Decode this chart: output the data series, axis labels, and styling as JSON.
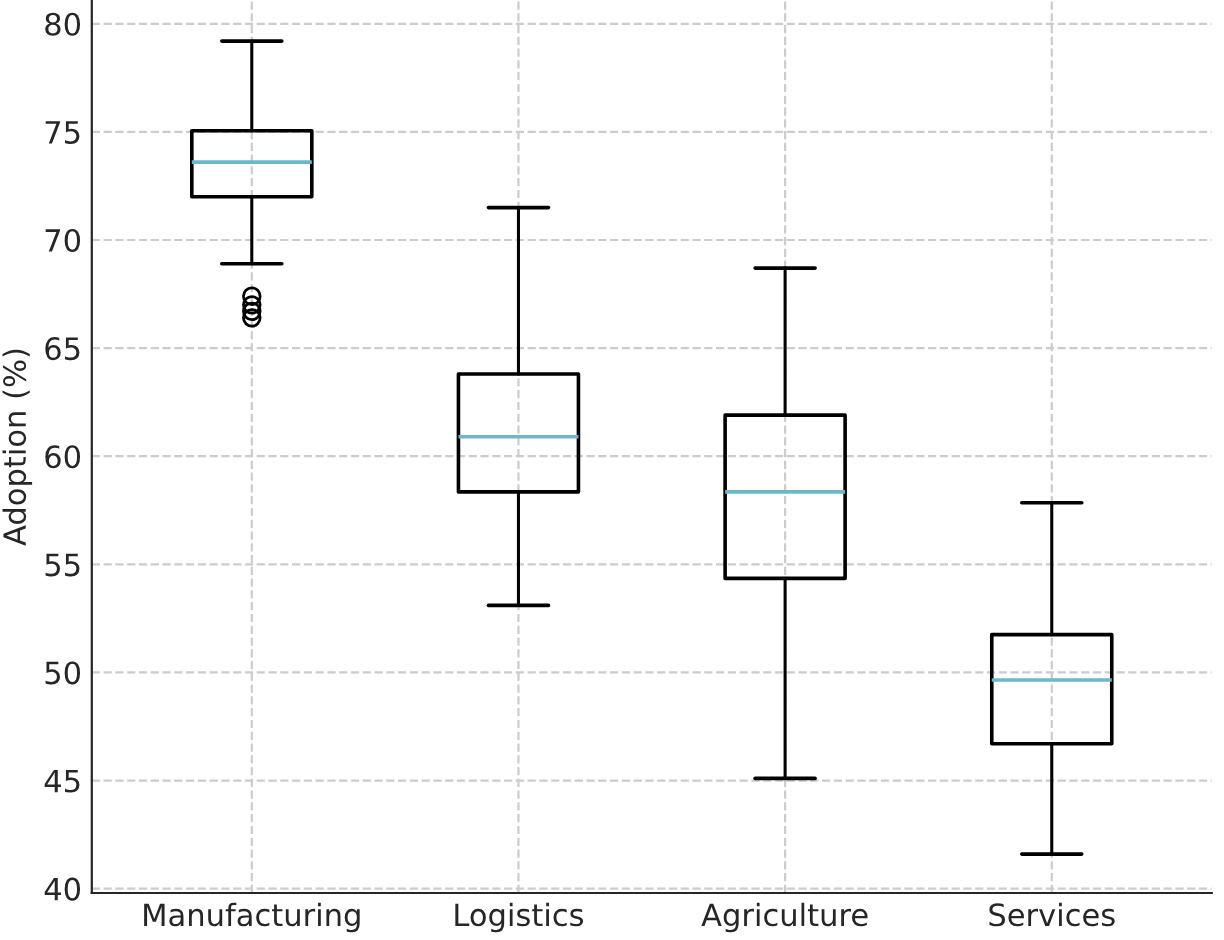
{
  "chart_data": {
    "type": "box",
    "ylabel": "Adoption (%)",
    "categories": [
      "Manufacturing",
      "Logistics",
      "Agriculture",
      "Services"
    ],
    "boxes": [
      {
        "low": 68.9,
        "q1": 72.0,
        "median": 73.6,
        "q3": 75.05,
        "high": 79.2,
        "outliers": [
          67.4,
          67.0,
          66.7,
          66.4
        ]
      },
      {
        "low": 53.1,
        "q1": 58.35,
        "median": 60.9,
        "q3": 63.8,
        "high": 71.5
      },
      {
        "low": 45.1,
        "q1": 54.35,
        "median": 58.35,
        "q3": 61.9,
        "high": 68.7
      },
      {
        "low": 41.6,
        "q1": 46.7,
        "median": 49.65,
        "q3": 51.75,
        "high": 57.85
      }
    ],
    "color": "#000000",
    "ylim": [
      39.8,
      81.1
    ],
    "yticks": [
      40,
      45,
      50,
      55,
      60,
      65,
      70,
      75,
      80
    ],
    "grid": true
  }
}
